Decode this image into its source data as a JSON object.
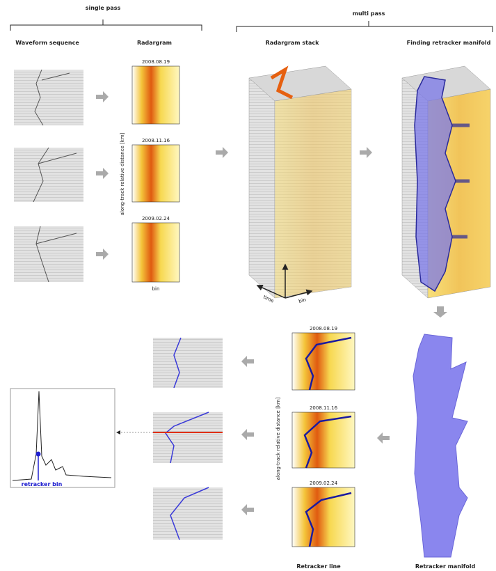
{
  "header": {
    "single_pass": "single pass",
    "multi_pass": "multi pass"
  },
  "columns": {
    "waveform": "Waveform sequence",
    "radargram": "Radargram",
    "stack": "Radargram stack",
    "manifold": "Finding retracker manifold"
  },
  "dates": [
    "2008.08.19",
    "2008.11.16",
    "2009.02.24"
  ],
  "axis": {
    "y": "along-track relative distance [km]",
    "x": "bin",
    "time": "time",
    "stack_bin": "bin"
  },
  "plot": {
    "label": "retracker bin"
  },
  "footer": {
    "line": "Retracker line",
    "manifold": "Retracker manifold"
  }
}
